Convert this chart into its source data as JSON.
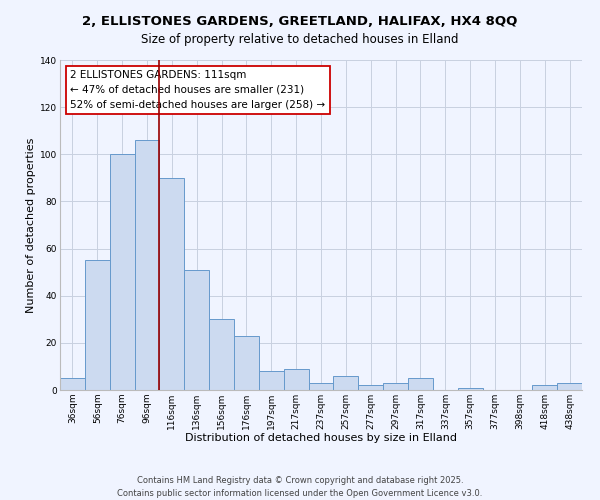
{
  "title": "2, ELLISTONES GARDENS, GREETLAND, HALIFAX, HX4 8QQ",
  "subtitle": "Size of property relative to detached houses in Elland",
  "xlabel": "Distribution of detached houses by size in Elland",
  "ylabel": "Number of detached properties",
  "bar_labels": [
    "36sqm",
    "56sqm",
    "76sqm",
    "96sqm",
    "116sqm",
    "136sqm",
    "156sqm",
    "176sqm",
    "197sqm",
    "217sqm",
    "237sqm",
    "257sqm",
    "277sqm",
    "297sqm",
    "317sqm",
    "337sqm",
    "357sqm",
    "377sqm",
    "398sqm",
    "418sqm",
    "438sqm"
  ],
  "bar_values": [
    5,
    55,
    100,
    106,
    90,
    51,
    30,
    23,
    8,
    9,
    3,
    6,
    2,
    3,
    5,
    0,
    1,
    0,
    0,
    2,
    3
  ],
  "bar_color": "#ccdaf0",
  "bar_edge_color": "#6699cc",
  "ylim": [
    0,
    140
  ],
  "yticks": [
    0,
    20,
    40,
    60,
    80,
    100,
    120,
    140
  ],
  "vline_x_index": 4,
  "vline_color": "#990000",
  "annotation_text": "2 ELLISTONES GARDENS: 111sqm\n← 47% of detached houses are smaller (231)\n52% of semi-detached houses are larger (258) →",
  "annotation_box_color": "#ffffff",
  "annotation_box_edge": "#cc0000",
  "footer_line1": "Contains HM Land Registry data © Crown copyright and database right 2025.",
  "footer_line2": "Contains public sector information licensed under the Open Government Licence v3.0.",
  "background_color": "#f0f4ff",
  "grid_color": "#c8d0e0",
  "title_fontsize": 9.5,
  "subtitle_fontsize": 8.5,
  "axis_label_fontsize": 8,
  "tick_fontsize": 6.5,
  "footer_fontsize": 6,
  "annotation_fontsize": 7.5
}
